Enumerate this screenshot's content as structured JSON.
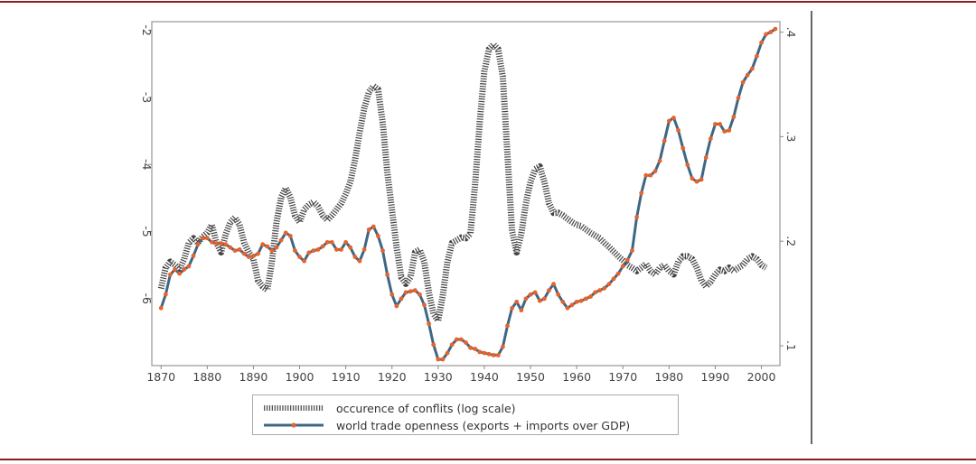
{
  "chart_data": {
    "type": "line",
    "title": "",
    "xlabel": "",
    "ylabel_left": "",
    "ylabel_right": "",
    "x_ticks": [
      "1870",
      "1880",
      "1890",
      "1900",
      "1910",
      "1920",
      "1930",
      "1940",
      "1950",
      "1960",
      "1970",
      "1980",
      "1990",
      "2000"
    ],
    "y_left_ticks": [
      "-2",
      "-3",
      "-4",
      "-5",
      "-6"
    ],
    "y_left_tick_values": [
      -2,
      -3,
      -4,
      -5,
      -6
    ],
    "y_right_ticks": [
      ".4",
      ".3",
      ".2",
      ".1"
    ],
    "y_right_tick_values": [
      0.4,
      0.3,
      0.2,
      0.1
    ],
    "xlim": [
      1868,
      2004
    ],
    "ylim_left": [
      -7.0,
      -1.87
    ],
    "ylim_right": [
      0.081,
      0.41
    ],
    "grid": false,
    "legend_position": "bottom",
    "series": [
      {
        "name": "occurence of conflits (log scale)",
        "axis": "left",
        "style": "hatched",
        "color": "#333333",
        "x_start": 1870,
        "values": [
          -5.85,
          -5.54,
          -5.45,
          -5.5,
          -5.57,
          -5.41,
          -5.17,
          -5.1,
          -5.17,
          -5.08,
          -5.02,
          -4.9,
          -5.17,
          -5.31,
          -5.04,
          -4.86,
          -4.79,
          -4.9,
          -5.17,
          -5.31,
          -5.41,
          -5.73,
          -5.82,
          -5.87,
          -5.45,
          -4.86,
          -4.49,
          -4.35,
          -4.49,
          -4.76,
          -4.86,
          -4.67,
          -4.6,
          -4.56,
          -4.63,
          -4.76,
          -4.83,
          -4.76,
          -4.67,
          -4.58,
          -4.44,
          -4.26,
          -3.93,
          -3.52,
          -3.16,
          -2.92,
          -2.83,
          -2.88,
          -3.38,
          -4.12,
          -4.67,
          -5.23,
          -5.68,
          -5.78,
          -5.68,
          -5.31,
          -5.27,
          -5.45,
          -5.91,
          -6.23,
          -6.33,
          -5.96,
          -5.45,
          -5.17,
          -5.13,
          -5.09,
          -5.1,
          -5.03,
          -4.3,
          -3.38,
          -2.61,
          -2.28,
          -2.21,
          -2.28,
          -2.69,
          -3.85,
          -4.99,
          -5.31,
          -5.04,
          -4.58,
          -4.26,
          -4.07,
          -4.03,
          -4.26,
          -4.58,
          -4.72,
          -4.72,
          -4.76,
          -4.81,
          -4.86,
          -4.9,
          -4.92,
          -4.97,
          -5.02,
          -5.06,
          -5.1,
          -5.17,
          -5.23,
          -5.3,
          -5.37,
          -5.43,
          -5.5,
          -5.54,
          -5.59,
          -5.54,
          -5.48,
          -5.59,
          -5.64,
          -5.54,
          -5.5,
          -5.59,
          -5.64,
          -5.45,
          -5.37,
          -5.37,
          -5.41,
          -5.54,
          -5.73,
          -5.82,
          -5.75,
          -5.64,
          -5.57,
          -5.59,
          -5.54,
          -5.59,
          -5.54,
          -5.5,
          -5.41,
          -5.37,
          -5.41,
          -5.5,
          -5.54
        ]
      },
      {
        "name": "world trade openness (exports + imports over GDP)",
        "axis": "right",
        "style": "line-with-markers",
        "color": "#3e6784",
        "marker_color": "#e8622a",
        "x_start": 1870,
        "values": [
          0.136,
          0.149,
          0.168,
          0.173,
          0.169,
          0.173,
          0.176,
          0.186,
          0.197,
          0.203,
          0.203,
          0.199,
          0.198,
          0.198,
          0.197,
          0.194,
          0.191,
          0.192,
          0.188,
          0.185,
          0.186,
          0.188,
          0.197,
          0.195,
          0.191,
          0.194,
          0.201,
          0.208,
          0.205,
          0.191,
          0.185,
          0.181,
          0.189,
          0.191,
          0.192,
          0.195,
          0.199,
          0.199,
          0.192,
          0.192,
          0.199,
          0.194,
          0.185,
          0.181,
          0.192,
          0.211,
          0.214,
          0.205,
          0.191,
          0.168,
          0.149,
          0.138,
          0.145,
          0.151,
          0.152,
          0.153,
          0.149,
          0.139,
          0.121,
          0.101,
          0.087,
          0.087,
          0.093,
          0.101,
          0.106,
          0.106,
          0.103,
          0.098,
          0.097,
          0.094,
          0.093,
          0.092,
          0.091,
          0.091,
          0.099,
          0.119,
          0.136,
          0.142,
          0.134,
          0.145,
          0.149,
          0.151,
          0.143,
          0.145,
          0.153,
          0.159,
          0.149,
          0.142,
          0.136,
          0.139,
          0.142,
          0.143,
          0.145,
          0.147,
          0.151,
          0.153,
          0.155,
          0.159,
          0.164,
          0.169,
          0.176,
          0.182,
          0.191,
          0.223,
          0.246,
          0.263,
          0.263,
          0.267,
          0.277,
          0.296,
          0.315,
          0.318,
          0.306,
          0.289,
          0.273,
          0.26,
          0.257,
          0.259,
          0.28,
          0.298,
          0.312,
          0.312,
          0.305,
          0.306,
          0.319,
          0.337,
          0.352,
          0.359,
          0.365,
          0.377,
          0.39,
          0.398,
          0.4,
          0.403
        ]
      }
    ]
  }
}
